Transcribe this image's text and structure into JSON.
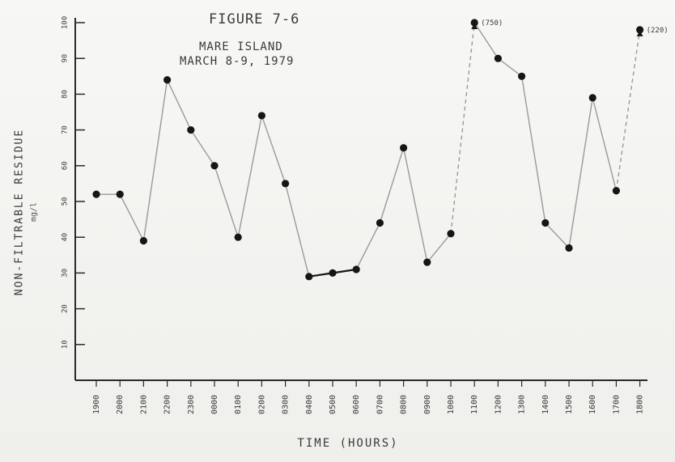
{
  "chart_data": {
    "type": "line",
    "title": "FIGURE 7-6",
    "subtitle_line1": "MARE ISLAND",
    "subtitle_line2": "MARCH 8-9, 1979",
    "xlabel": "TIME (HOURS)",
    "ylabel": "NON-FILTRABLE RESIDUE",
    "yunit": "mg/l",
    "categories": [
      "1900",
      "2000",
      "2100",
      "2200",
      "2300",
      "0000",
      "0100",
      "0200",
      "0300",
      "0400",
      "0500",
      "0600",
      "0700",
      "0800",
      "0900",
      "1000",
      "1100",
      "1200",
      "1300",
      "1400",
      "1500",
      "1600",
      "1700",
      "1800"
    ],
    "yticks": [
      10,
      20,
      30,
      40,
      50,
      60,
      70,
      80,
      90,
      100
    ],
    "ylim": [
      0,
      100
    ],
    "series": [
      {
        "values": [
          52,
          52,
          39,
          84,
          70,
          60,
          40,
          74,
          55,
          29,
          30,
          31,
          44,
          65,
          33,
          41,
          100,
          90,
          85,
          44,
          37,
          79,
          53,
          98
        ],
        "offscale_points": [
          {
            "category": "1100",
            "label": "(750)"
          },
          {
            "category": "1800",
            "label": "(220)"
          }
        ]
      }
    ],
    "dashed_segments": [
      [
        15,
        16
      ],
      [
        22,
        23
      ]
    ],
    "bold_segments": [
      [
        9,
        10
      ],
      [
        10,
        11
      ]
    ],
    "grid": false
  },
  "colors": {
    "line": "#9a9a9a",
    "marker": "#161616",
    "axis": "#2a2a2a",
    "text": "#3a3a3a"
  }
}
